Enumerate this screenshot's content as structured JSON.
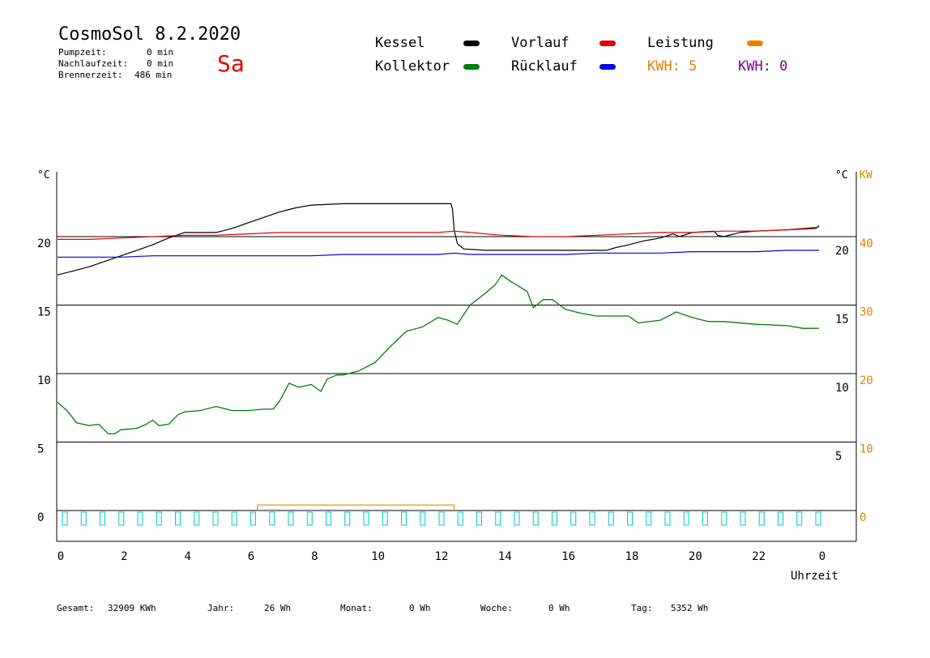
{
  "header": {
    "title": "CosmoSol 8.2.2020",
    "day": "Sa",
    "stats": [
      {
        "label": "Pumpzeit:",
        "value": "0 min"
      },
      {
        "label": "Nachlaufzeit:",
        "value": "0 min"
      },
      {
        "label": "Brennerzeit:",
        "value": "486 min"
      }
    ]
  },
  "legend": {
    "kessel": {
      "label": "Kessel",
      "color": "#000000"
    },
    "vorlauf": {
      "label": "Vorlauf",
      "color": "#e00000"
    },
    "leistung": {
      "label": "Leistung",
      "color": "#f08000"
    },
    "kollektor": {
      "label": "Kollektor",
      "color": "#008000"
    },
    "ruecklauf": {
      "label": "Rücklauf",
      "color": "#0000e0"
    },
    "kwh1": {
      "label": "KWH: 5",
      "color": "#e08000"
    },
    "kwh2": {
      "label": "KWH: 0",
      "color": "#800080"
    }
  },
  "footer": {
    "gesamt_label": "Gesamt:",
    "gesamt_value": "32909 KWh",
    "jahr_label": "Jahr:",
    "jahr_value": "26 Wh",
    "monat_label": "Monat:",
    "monat_value": "0 Wh",
    "woche_label": "Woche:",
    "woche_value": "0 Wh",
    "tag_label": "Tag:",
    "tag_value": "5352 Wh"
  },
  "chart_data": {
    "type": "line",
    "x_unit_label": "Uhrzeit",
    "x_ticks": [
      "0",
      "2",
      "4",
      "6",
      "8",
      "10",
      "12",
      "14",
      "16",
      "18",
      "20",
      "22",
      "0"
    ],
    "left_axis": {
      "unit": "°C",
      "ticks": [
        "0",
        "5",
        "10",
        "15",
        "20"
      ],
      "ylim": [
        -1.8,
        24.8
      ]
    },
    "right_axis_temp": {
      "unit": "°C",
      "ticks": [
        "5",
        "10",
        "15",
        "20"
      ]
    },
    "right_axis_power": {
      "unit": "KW",
      "ticks": [
        "0",
        "10",
        "20",
        "30",
        "40"
      ],
      "color": "#e08000"
    },
    "grid_y": [
      0,
      5,
      10,
      15,
      20
    ],
    "series": [
      {
        "name": "Kessel",
        "color": "#000000",
        "points": [
          [
            0,
            17.2
          ],
          [
            0.5,
            17.5
          ],
          [
            1,
            17.8
          ],
          [
            1.5,
            18.2
          ],
          [
            2,
            18.6
          ],
          [
            2.5,
            19
          ],
          [
            3,
            19.4
          ],
          [
            3.5,
            19.9
          ],
          [
            4,
            20.3
          ],
          [
            5,
            20.3
          ],
          [
            5.5,
            20.6
          ],
          [
            6,
            21
          ],
          [
            6.5,
            21.4
          ],
          [
            7,
            21.8
          ],
          [
            7.5,
            22.1
          ],
          [
            8,
            22.3
          ],
          [
            9,
            22.4
          ],
          [
            10,
            22.4
          ],
          [
            11,
            22.4
          ],
          [
            12,
            22.4
          ],
          [
            12.4,
            22.4
          ],
          [
            12.45,
            22
          ],
          [
            12.5,
            20.5
          ],
          [
            12.6,
            19.5
          ],
          [
            12.8,
            19.1
          ],
          [
            13.5,
            19.0
          ],
          [
            14,
            19.0
          ],
          [
            15,
            19.0
          ],
          [
            16,
            19.0
          ],
          [
            17,
            19.0
          ],
          [
            17.3,
            19.0
          ],
          [
            17.6,
            19.2
          ],
          [
            18,
            19.4
          ],
          [
            18.5,
            19.7
          ],
          [
            19,
            19.9
          ],
          [
            19.4,
            20.2
          ],
          [
            19.6,
            20.0
          ],
          [
            20,
            20.3
          ],
          [
            20.7,
            20.4
          ],
          [
            20.8,
            20.1
          ],
          [
            21,
            20.0
          ],
          [
            21.5,
            20.3
          ],
          [
            22,
            20.4
          ],
          [
            23,
            20.5
          ],
          [
            23.9,
            20.6
          ],
          [
            24,
            20.8
          ]
        ]
      },
      {
        "name": "Vorlauf",
        "color": "#e00000",
        "points": [
          [
            0,
            19.8
          ],
          [
            1,
            19.8
          ],
          [
            2,
            19.9
          ],
          [
            3,
            20.0
          ],
          [
            4,
            20.1
          ],
          [
            5,
            20.1
          ],
          [
            6,
            20.2
          ],
          [
            7,
            20.3
          ],
          [
            8,
            20.3
          ],
          [
            9,
            20.3
          ],
          [
            10,
            20.3
          ],
          [
            11,
            20.3
          ],
          [
            12,
            20.3
          ],
          [
            12.5,
            20.4
          ],
          [
            13,
            20.3
          ],
          [
            14,
            20.1
          ],
          [
            15,
            20.0
          ],
          [
            16,
            20.0
          ],
          [
            17,
            20.1
          ],
          [
            18,
            20.2
          ],
          [
            19,
            20.3
          ],
          [
            20,
            20.3
          ],
          [
            21,
            20.4
          ],
          [
            22,
            20.4
          ],
          [
            23,
            20.5
          ],
          [
            23.5,
            20.6
          ],
          [
            24,
            20.7
          ]
        ]
      },
      {
        "name": "Rücklauf",
        "color": "#0000e0",
        "points": [
          [
            0,
            18.5
          ],
          [
            1,
            18.5
          ],
          [
            2,
            18.5
          ],
          [
            3,
            18.6
          ],
          [
            4,
            18.6
          ],
          [
            5,
            18.6
          ],
          [
            6,
            18.6
          ],
          [
            7,
            18.6
          ],
          [
            8,
            18.6
          ],
          [
            9,
            18.7
          ],
          [
            10,
            18.7
          ],
          [
            11,
            18.7
          ],
          [
            12,
            18.7
          ],
          [
            12.5,
            18.8
          ],
          [
            13,
            18.7
          ],
          [
            14,
            18.7
          ],
          [
            15,
            18.7
          ],
          [
            16,
            18.7
          ],
          [
            17,
            18.8
          ],
          [
            18,
            18.8
          ],
          [
            19,
            18.8
          ],
          [
            20,
            18.9
          ],
          [
            21,
            18.9
          ],
          [
            22,
            18.9
          ],
          [
            23,
            19.0
          ],
          [
            24,
            19.0
          ]
        ]
      },
      {
        "name": "Kollektor",
        "color": "#008000",
        "points": [
          [
            0,
            7.9
          ],
          [
            0.3,
            7.3
          ],
          [
            0.6,
            6.4
          ],
          [
            1,
            6.2
          ],
          [
            1.3,
            6.3
          ],
          [
            1.6,
            5.6
          ],
          [
            1.8,
            5.6
          ],
          [
            2,
            5.9
          ],
          [
            2.5,
            6.0
          ],
          [
            2.8,
            6.3
          ],
          [
            3,
            6.6
          ],
          [
            3.2,
            6.2
          ],
          [
            3.5,
            6.3
          ],
          [
            3.8,
            7.0
          ],
          [
            4,
            7.2
          ],
          [
            4.5,
            7.3
          ],
          [
            5,
            7.6
          ],
          [
            5.5,
            7.3
          ],
          [
            6,
            7.3
          ],
          [
            6.5,
            7.4
          ],
          [
            6.8,
            7.4
          ],
          [
            7,
            8.0
          ],
          [
            7.3,
            9.3
          ],
          [
            7.6,
            9.0
          ],
          [
            8,
            9.2
          ],
          [
            8.3,
            8.7
          ],
          [
            8.5,
            9.6
          ],
          [
            8.8,
            9.9
          ],
          [
            9,
            9.9
          ],
          [
            9.5,
            10.2
          ],
          [
            10,
            10.8
          ],
          [
            10.5,
            12.0
          ],
          [
            11,
            13.1
          ],
          [
            11.5,
            13.4
          ],
          [
            12,
            14.1
          ],
          [
            12.3,
            13.9
          ],
          [
            12.6,
            13.6
          ],
          [
            13,
            15.0
          ],
          [
            13.5,
            15.9
          ],
          [
            13.8,
            16.5
          ],
          [
            14,
            17.2
          ],
          [
            14.3,
            16.7
          ],
          [
            14.8,
            16.0
          ],
          [
            15,
            14.8
          ],
          [
            15.3,
            15.4
          ],
          [
            15.6,
            15.4
          ],
          [
            16,
            14.7
          ],
          [
            16.5,
            14.4
          ],
          [
            17,
            14.2
          ],
          [
            18,
            14.2
          ],
          [
            18.3,
            13.7
          ],
          [
            19,
            13.9
          ],
          [
            19.5,
            14.5
          ],
          [
            20,
            14.1
          ],
          [
            20.5,
            13.8
          ],
          [
            21,
            13.8
          ],
          [
            22,
            13.6
          ],
          [
            23,
            13.5
          ],
          [
            23.5,
            13.3
          ],
          [
            24,
            13.3
          ]
        ]
      },
      {
        "name": "Leistung",
        "color": "#f08000",
        "points": [
          [
            6.3,
            0
          ],
          [
            6.3,
            0.4
          ],
          [
            12.5,
            0.4
          ],
          [
            12.5,
            0
          ]
        ]
      }
    ]
  }
}
